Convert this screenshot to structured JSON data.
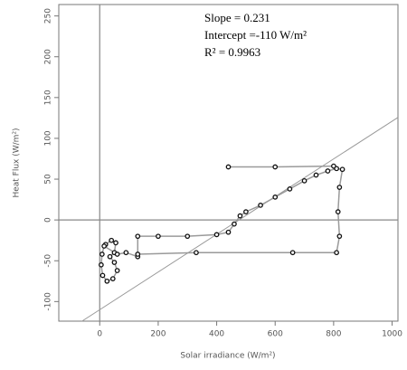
{
  "chart_data": {
    "type": "scatter",
    "x_label": "Solar irradiance (W/m²)",
    "y_label": "Heat Flux (W/m²)",
    "annotations": [
      "Slope = 0.231",
      "Intercept =-110 W/m²",
      "R² = 0.9963"
    ],
    "trendline": {
      "slope": 0.231,
      "intercept": -110,
      "color": "#999999"
    },
    "reference_lines": {
      "x": 0,
      "y": 0,
      "color": "#888888"
    },
    "connect": true,
    "series": [
      {
        "color": "#111111",
        "line_color": "#9a9a9a",
        "x": [
          20,
          40,
          55,
          50,
          35,
          50,
          60,
          45,
          25,
          10,
          5,
          8,
          15,
          60,
          90,
          130,
          130,
          200,
          300,
          400,
          440,
          460,
          480,
          500,
          550,
          600,
          650,
          700,
          740,
          780,
          810,
          830,
          820,
          815,
          820,
          810,
          660,
          330,
          130,
          null,
          440,
          600,
          800
        ],
        "values": [
          -30,
          -25,
          -28,
          -40,
          -45,
          -52,
          -62,
          -72,
          -75,
          -68,
          -55,
          -42,
          -32,
          -42,
          -40,
          -45,
          -20,
          -20,
          -20,
          -18,
          -15,
          -5,
          5,
          10,
          18,
          28,
          38,
          48,
          55,
          60,
          63,
          62,
          40,
          10,
          -20,
          -40,
          -40,
          -40,
          -42,
          null,
          65,
          65,
          66
        ]
      }
    ],
    "xlim": [
      -140,
      1020
    ],
    "ylim": [
      -124,
      264
    ],
    "xticks": [
      0,
      200,
      400,
      600,
      800,
      1000
    ],
    "yticks": [
      -100,
      -50,
      0,
      50,
      100,
      150,
      200,
      250
    ]
  }
}
